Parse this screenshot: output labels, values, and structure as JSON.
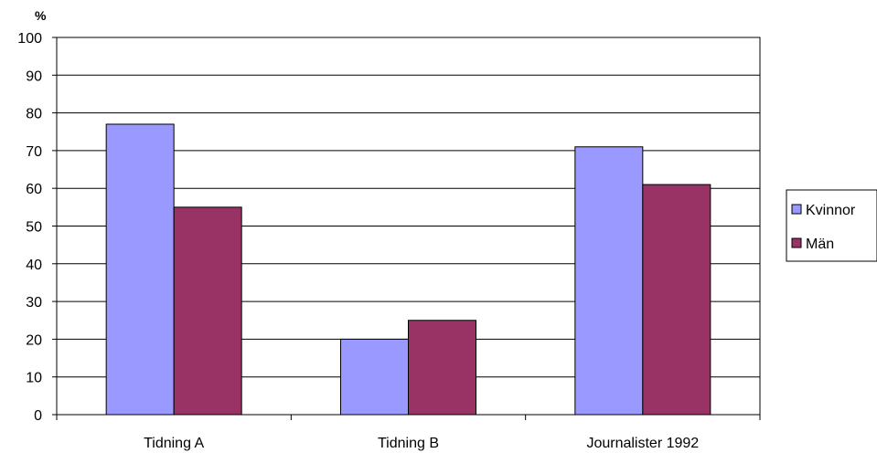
{
  "chart_data": {
    "type": "bar",
    "categories": [
      "Tidning A",
      "Tidning B",
      "Journalister 1992"
    ],
    "series": [
      {
        "name": "Kvinnor",
        "values": [
          77,
          20,
          71
        ],
        "color": "#9999ff"
      },
      {
        "name": "Män",
        "values": [
          55,
          25,
          61
        ],
        "color": "#993366"
      }
    ],
    "ylabel": "%",
    "ylim": [
      0,
      100
    ],
    "yticks": [
      0,
      10,
      20,
      30,
      40,
      50,
      60,
      70,
      80,
      90,
      100
    ],
    "grid": true,
    "legend_position": "right"
  }
}
